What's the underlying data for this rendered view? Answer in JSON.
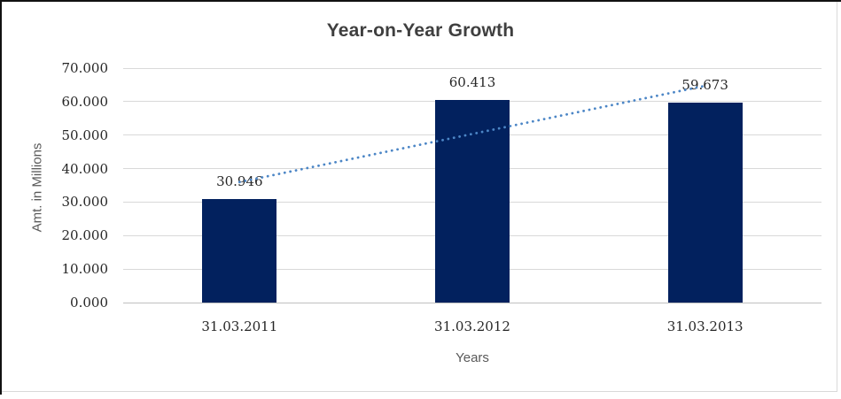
{
  "frame": {
    "background": "#FFFFFF",
    "outer_edge_color": "#111111",
    "chart_border_color": "#D9D9D9"
  },
  "chart_data": {
    "type": "bar",
    "title": "Year-on-Year Growth",
    "categories": [
      "31.03.2011",
      "31.03.2012",
      "31.03.2013"
    ],
    "values": [
      30.946,
      60.413,
      59.673
    ],
    "data_labels": [
      "30.946",
      "60.413",
      "59.673"
    ],
    "xlabel": "Years",
    "ylabel": "Amt. in Millions",
    "ylim": [
      0,
      70
    ],
    "yticks": [
      0,
      10,
      20,
      30,
      40,
      50,
      60,
      70
    ],
    "ytick_labels": [
      "0.000",
      "10.000",
      "20.000",
      "30.000",
      "40.000",
      "50.000",
      "60.000",
      "70.000"
    ],
    "grid": true,
    "legend": "none",
    "bar_color": "#02215E",
    "gridline_color": "#D9D9D9",
    "axis_line_color": "#C0C0C0",
    "title_color": "#3F3F3F",
    "tick_label_color": "#262626",
    "axis_title_color": "#595959",
    "trendline": {
      "type": "linear",
      "style": "dotted",
      "color": "#4C86C6",
      "start_value": 35.98,
      "end_value": 64.71
    }
  }
}
